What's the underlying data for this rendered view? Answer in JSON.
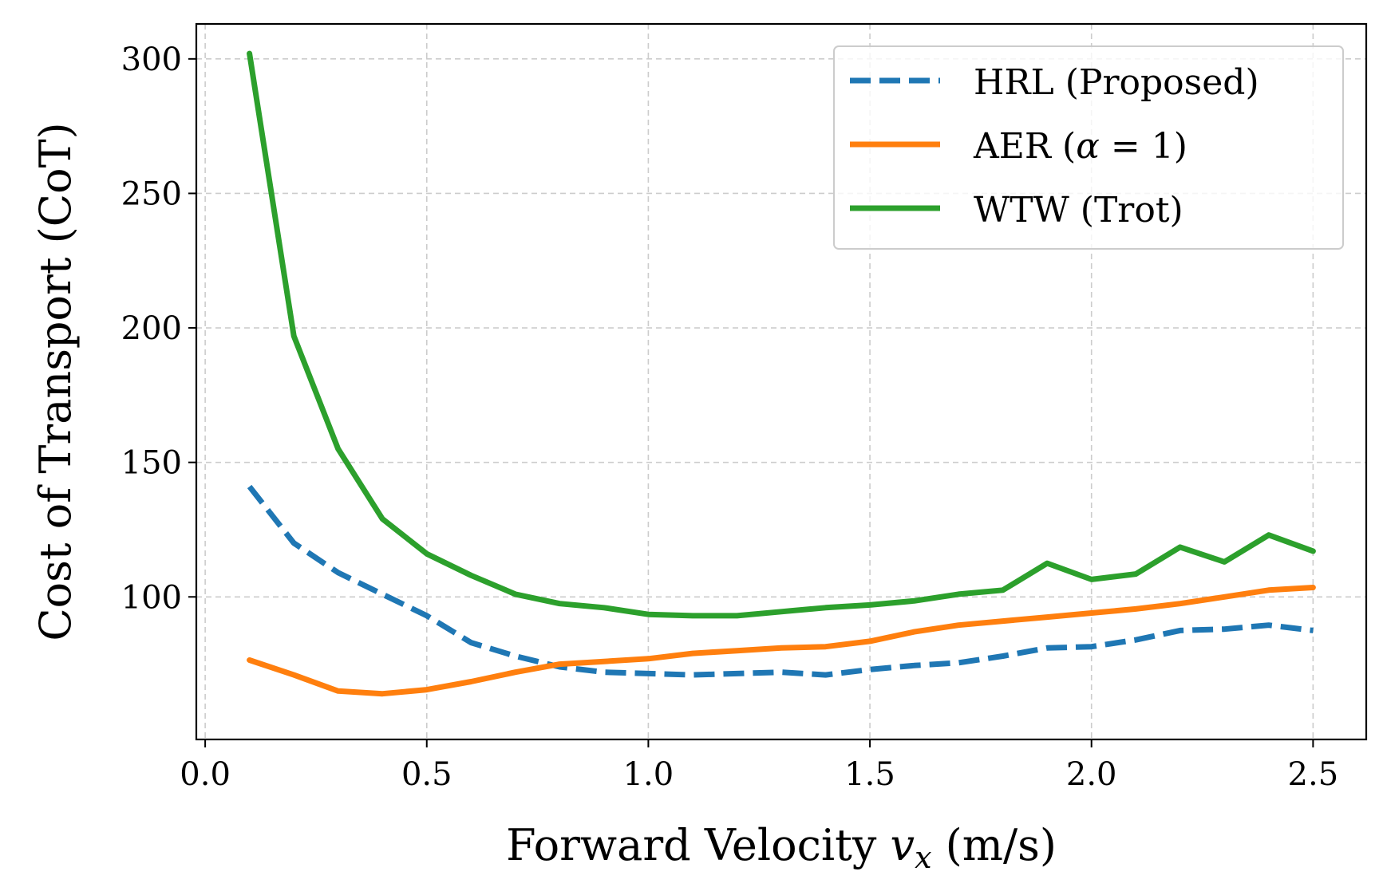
{
  "chart_data": {
    "type": "line",
    "xlabel": "Forward Velocity",
    "xlabel_symbol": "v",
    "xlabel_subscript": "x",
    "xlabel_unit": " (m/s)",
    "ylabel": "Cost of Transport (CoT)",
    "xlim": [
      -0.02,
      2.62
    ],
    "ylim": [
      47,
      313
    ],
    "xticks": [
      0.0,
      0.5,
      1.0,
      1.5,
      2.0,
      2.5
    ],
    "xtick_labels": [
      "0.0",
      "0.5",
      "1.0",
      "1.5",
      "2.0",
      "2.5"
    ],
    "yticks": [
      100,
      150,
      200,
      250,
      300
    ],
    "ytick_labels": [
      "100",
      "150",
      "200",
      "250",
      "300"
    ],
    "grid": true,
    "legend_position": "upper right",
    "x": [
      0.1,
      0.2,
      0.3,
      0.4,
      0.5,
      0.6,
      0.7,
      0.8,
      0.9,
      1.0,
      1.1,
      1.2,
      1.3,
      1.4,
      1.5,
      1.6,
      1.7,
      1.8,
      1.9,
      2.0,
      2.1,
      2.2,
      2.3,
      2.4,
      2.5
    ],
    "series": [
      {
        "name": "HRL (Proposed)",
        "color": "#1f77b4",
        "style": "dashed",
        "values": [
          141,
          120,
          109,
          101,
          93,
          83,
          78,
          74,
          72,
          71.5,
          71,
          71.5,
          72,
          71,
          73,
          74.5,
          75.5,
          78,
          81,
          81.5,
          84,
          87.5,
          88,
          89.5,
          87.5
        ]
      },
      {
        "name": "AER (α = 1)",
        "legend_text": "AER (",
        "legend_symbol": "α",
        "legend_rest": " = 1)",
        "color": "#ff7f0e",
        "style": "solid",
        "values": [
          76.5,
          71,
          65,
          64,
          65.5,
          68.5,
          72,
          75,
          76,
          77,
          79,
          80,
          81,
          81.5,
          83.5,
          87,
          89.5,
          91,
          92.5,
          94,
          95.5,
          97.5,
          100,
          102.5,
          103.5
        ]
      },
      {
        "name": "WTW (Trot)",
        "color": "#2ca02c",
        "style": "solid",
        "values": [
          302,
          197,
          155,
          129,
          116,
          108,
          101,
          97.5,
          96,
          93.5,
          93,
          93,
          94.5,
          96,
          97,
          98.5,
          101,
          102.5,
          112.5,
          106.5,
          108.5,
          118.5,
          113,
          123,
          117
        ]
      }
    ]
  }
}
